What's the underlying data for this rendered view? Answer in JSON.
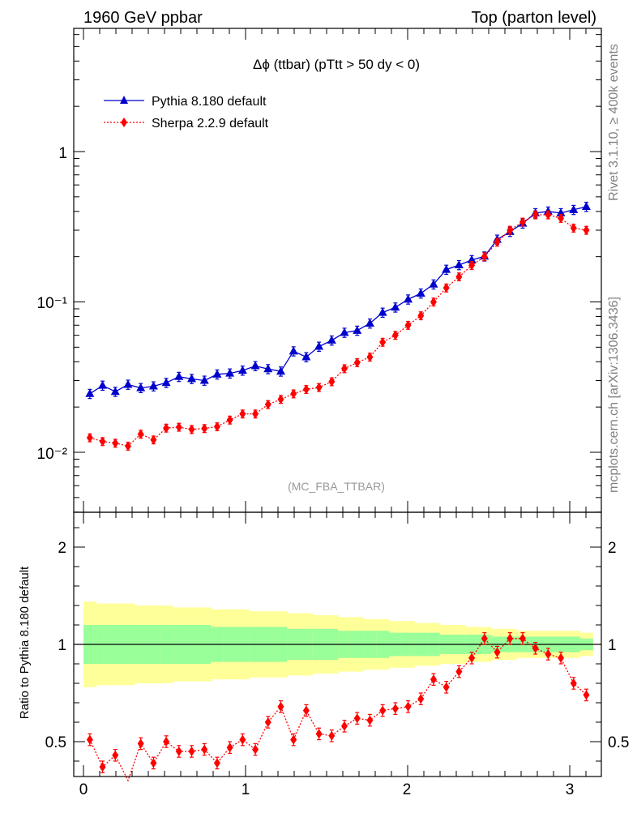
{
  "header": {
    "left": "1960 GeV ppbar",
    "right": "Top (parton level)"
  },
  "side_labels": {
    "rivet": "Rivet 3.1.10, ≥ 400k events",
    "mcplots": "mcplots.cern.ch [arXiv:1306.3436]"
  },
  "chart_data": [
    {
      "type": "line",
      "title": "Δϕ (ttbar) (pTtt > 50 dy < 0)",
      "watermark": "(MC_FBA_TTBAR)",
      "yscale": "log",
      "ylim": [
        0.004,
        6
      ],
      "xlim": [
        -0.05,
        3.2
      ],
      "ytick_labels": [
        "1",
        "10⁻¹",
        "10⁻²"
      ],
      "legend_position": "top-left",
      "x": [
        0.0393,
        0.1178,
        0.1963,
        0.2749,
        0.3534,
        0.432,
        0.5105,
        0.589,
        0.6676,
        0.7461,
        0.8247,
        0.9032,
        0.9817,
        1.0603,
        1.1388,
        1.2174,
        1.2959,
        1.3744,
        1.453,
        1.5315,
        1.6101,
        1.6886,
        1.7671,
        1.8457,
        1.9242,
        2.0028,
        2.0813,
        2.1598,
        2.2384,
        2.3169,
        2.3955,
        2.474,
        2.5525,
        2.6311,
        2.7096,
        2.7882,
        2.8667,
        2.9452,
        3.0238,
        3.1023
      ],
      "series": [
        {
          "name": "Pythia 8.180 default",
          "color": "#0000cc",
          "marker": "triangle",
          "values": [
            0.0245,
            0.0278,
            0.0253,
            0.0282,
            0.0268,
            0.0275,
            0.029,
            0.0318,
            0.0308,
            0.03,
            0.033,
            0.0335,
            0.035,
            0.0375,
            0.0358,
            0.0345,
            0.047,
            0.043,
            0.0505,
            0.0555,
            0.0625,
            0.0645,
            0.072,
            0.085,
            0.092,
            0.104,
            0.114,
            0.131,
            0.164,
            0.176,
            0.19,
            0.201,
            0.26,
            0.293,
            0.333,
            0.39,
            0.4,
            0.39,
            0.41,
            0.43
          ]
        },
        {
          "name": "Sherpa 2.2.9 default",
          "color": "#ff0000",
          "marker": "diamond",
          "values": [
            0.0125,
            0.0118,
            0.0115,
            0.011,
            0.0132,
            0.0121,
            0.0145,
            0.0147,
            0.0142,
            0.0144,
            0.0148,
            0.0164,
            0.018,
            0.018,
            0.0208,
            0.0225,
            0.0245,
            0.0262,
            0.027,
            0.0295,
            0.036,
            0.0395,
            0.043,
            0.054,
            0.06,
            0.07,
            0.081,
            0.1,
            0.124,
            0.147,
            0.175,
            0.2,
            0.25,
            0.3,
            0.34,
            0.38,
            0.38,
            0.36,
            0.31,
            0.3
          ]
        }
      ]
    },
    {
      "type": "line",
      "ylabel": "Ratio to Pythia 8.180 default",
      "ylim": [
        0.33,
        2.25
      ],
      "xlim": [
        -0.05,
        3.2
      ],
      "ytick_labels": [
        "2",
        "1",
        "0.5"
      ],
      "xtick_labels": [
        "0",
        "1",
        "2",
        "3"
      ],
      "band_yellow_halfwidth": [
        0.22,
        0.21,
        0.21,
        0.21,
        0.2,
        0.2,
        0.2,
        0.19,
        0.19,
        0.19,
        0.18,
        0.18,
        0.18,
        0.17,
        0.17,
        0.17,
        0.16,
        0.16,
        0.15,
        0.15,
        0.14,
        0.14,
        0.13,
        0.13,
        0.12,
        0.12,
        0.11,
        0.11,
        0.1,
        0.1,
        0.09,
        0.09,
        0.08,
        0.08,
        0.07,
        0.07,
        0.07,
        0.07,
        0.07,
        0.06
      ],
      "band_green_halfwidth": [
        0.1,
        0.1,
        0.1,
        0.1,
        0.1,
        0.1,
        0.1,
        0.1,
        0.1,
        0.1,
        0.09,
        0.09,
        0.09,
        0.09,
        0.09,
        0.09,
        0.08,
        0.08,
        0.08,
        0.08,
        0.07,
        0.07,
        0.07,
        0.07,
        0.06,
        0.06,
        0.06,
        0.06,
        0.05,
        0.05,
        0.05,
        0.05,
        0.04,
        0.04,
        0.04,
        0.04,
        0.04,
        0.04,
        0.04,
        0.03
      ],
      "series": [
        {
          "name": "Sherpa 2.2.9 default",
          "color": "#ff0000",
          "marker": "diamond",
          "values": [
            0.51,
            0.37,
            0.43,
            0.3,
            0.49,
            0.39,
            0.5,
            0.45,
            0.45,
            0.46,
            0.39,
            0.47,
            0.51,
            0.46,
            0.6,
            0.68,
            0.51,
            0.66,
            0.54,
            0.53,
            0.58,
            0.62,
            0.61,
            0.66,
            0.67,
            0.68,
            0.72,
            0.82,
            0.78,
            0.86,
            0.93,
            1.03,
            0.96,
            1.03,
            1.03,
            0.98,
            0.95,
            0.93,
            0.8,
            0.74
          ]
        }
      ]
    }
  ]
}
